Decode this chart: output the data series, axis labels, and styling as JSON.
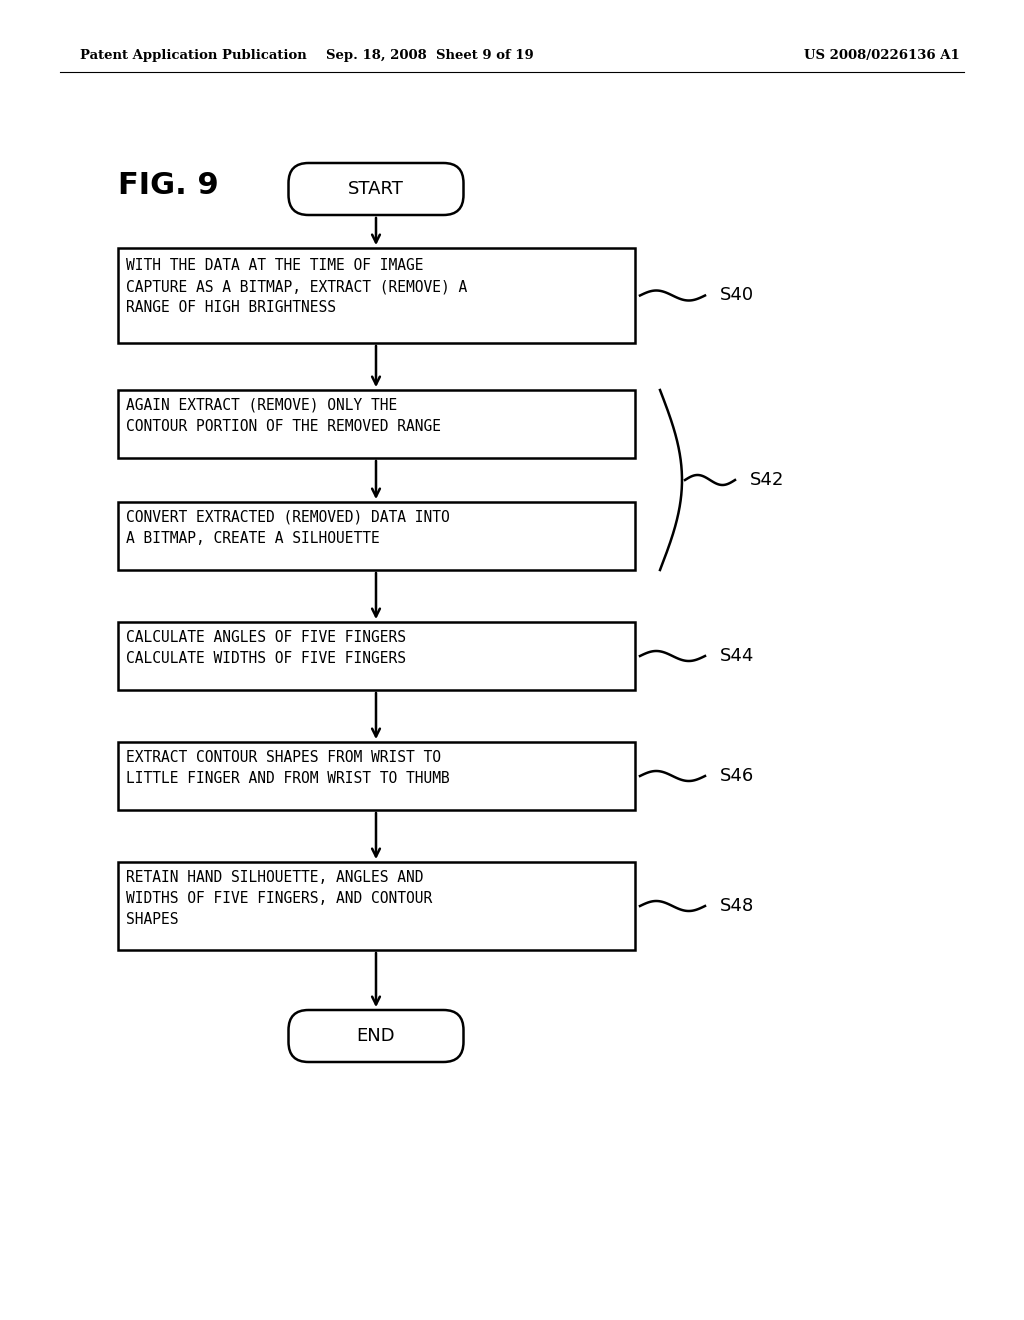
{
  "bg_color": "#ffffff",
  "header_left": "Patent Application Publication",
  "header_center": "Sep. 18, 2008  Sheet 9 of 19",
  "header_right": "US 2008/0226136 A1",
  "fig_label": "FIG. 9",
  "start_label": "START",
  "end_label": "END",
  "boxes": [
    {
      "id": "s40",
      "text": "WITH THE DATA AT THE TIME OF IMAGE\nCAPTURE AS A BITMAP, EXTRACT (REMOVE) A\nRANGE OF HIGH BRIGHTNESS",
      "label": "S40"
    },
    {
      "id": "s42a",
      "text": "AGAIN EXTRACT (REMOVE) ONLY THE\nCONTOUR PORTION OF THE REMOVED RANGE",
      "label": "S42",
      "brace": true
    },
    {
      "id": "s42b",
      "text": "CONVERT EXTRACTED (REMOVED) DATA INTO\nA BITMAP, CREATE A SILHOUETTE",
      "label": null,
      "brace": true
    },
    {
      "id": "s44",
      "text": "CALCULATE ANGLES OF FIVE FINGERS\nCALCULATE WIDTHS OF FIVE FINGERS",
      "label": "S44"
    },
    {
      "id": "s46",
      "text": "EXTRACT CONTOUR SHAPES FROM WRIST TO\nLITTLE FINGER AND FROM WRIST TO THUMB",
      "label": "S46"
    },
    {
      "id": "s48",
      "text": "RETAIN HAND SILHOUETTE, ANGLES AND\nWIDTHS OF FIVE FINGERS, AND CONTOUR\nSHAPES",
      "label": "S48"
    }
  ],
  "header_fontsize": 9.5,
  "figlabel_fontsize": 22,
  "text_fontsize": 10.5,
  "label_fontsize": 13
}
